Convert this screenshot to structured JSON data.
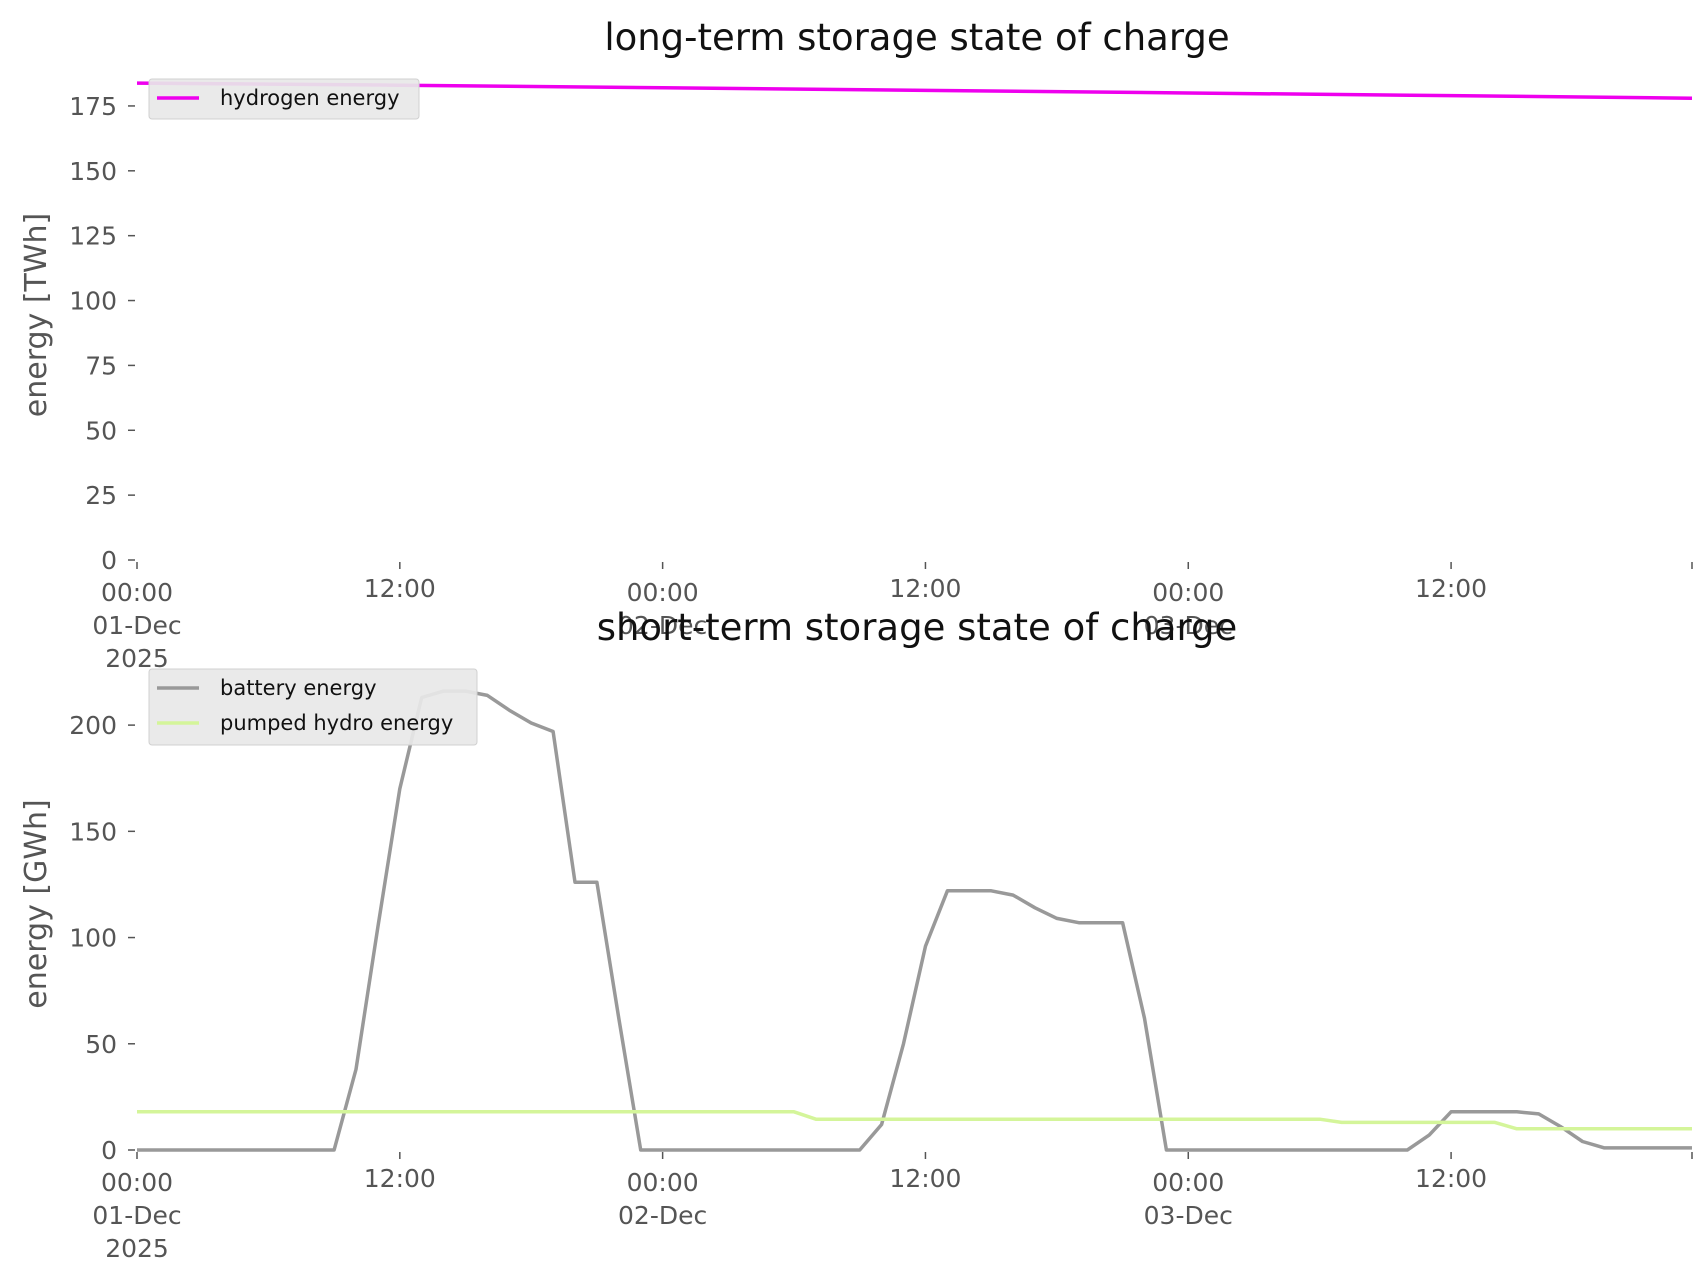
{
  "colors": {
    "hydrogen": "#ee00ee",
    "battery": "#999999",
    "pumped_hydro": "#d4f59a",
    "axis": "#555555",
    "legend_bg": "#e8e8e8",
    "legend_border": "#d0d0d0"
  },
  "chart_data": [
    {
      "type": "line",
      "title": "long-term storage state of charge",
      "ylabel": "energy [TWh]",
      "ylim": [
        0,
        185
      ],
      "yticks": [
        0,
        25,
        50,
        75,
        100,
        125,
        150,
        175
      ],
      "xlim": [
        "2025-12-01 00:00",
        "2025-12-03 23:00"
      ],
      "xticks": [
        {
          "x": "2025-12-01 00:00",
          "label": "00:00",
          "label2": "01-Dec",
          "label3": "2025"
        },
        {
          "x": "2025-12-01 12:00",
          "label": "12:00"
        },
        {
          "x": "2025-12-02 00:00",
          "label": "00:00",
          "label2": "02-Dec"
        },
        {
          "x": "2025-12-02 12:00",
          "label": "12:00"
        },
        {
          "x": "2025-12-03 00:00",
          "label": "00:00",
          "label2": "03-Dec"
        },
        {
          "x": "2025-12-03 12:00",
          "label": "12:00"
        },
        {
          "x": "2025-12-03 23:00",
          "label": ""
        }
      ],
      "legend": "upper left",
      "grid": false,
      "series": [
        {
          "name": "hydrogen energy",
          "color": "#ee00ee",
          "points": [
            {
              "x": "2025-12-01 00:00",
              "y": 183.8
            },
            {
              "x": "2025-12-01 12:00",
              "y": 183.0
            },
            {
              "x": "2025-12-02 00:00",
              "y": 182.0
            },
            {
              "x": "2025-12-02 12:00",
              "y": 181.0
            },
            {
              "x": "2025-12-03 00:00",
              "y": 180.0
            },
            {
              "x": "2025-12-03 12:00",
              "y": 179.0
            },
            {
              "x": "2025-12-03 23:00",
              "y": 178.0
            }
          ]
        }
      ]
    },
    {
      "type": "line",
      "title": "short-term storage state of charge",
      "ylabel": "energy [GWh]",
      "ylim": [
        0,
        225
      ],
      "yticks": [
        0,
        50,
        100,
        150,
        200
      ],
      "xlim": [
        "2025-12-01 00:00",
        "2025-12-03 23:00"
      ],
      "xticks": [
        {
          "x": "2025-12-01 00:00",
          "label": "00:00",
          "label2": "01-Dec",
          "label3": "2025"
        },
        {
          "x": "2025-12-01 12:00",
          "label": "12:00"
        },
        {
          "x": "2025-12-02 00:00",
          "label": "00:00",
          "label2": "02-Dec"
        },
        {
          "x": "2025-12-02 12:00",
          "label": "12:00"
        },
        {
          "x": "2025-12-03 00:00",
          "label": "00:00",
          "label2": "03-Dec"
        },
        {
          "x": "2025-12-03 12:00",
          "label": "12:00"
        },
        {
          "x": "2025-12-03 23:00",
          "label": ""
        }
      ],
      "legend": "upper left",
      "grid": false,
      "series": [
        {
          "name": "battery energy",
          "color": "#999999",
          "points": [
            {
              "x": "2025-12-01 00:00",
              "y": 0
            },
            {
              "x": "2025-12-01 09:00",
              "y": 0
            },
            {
              "x": "2025-12-01 10:00",
              "y": 38
            },
            {
              "x": "2025-12-01 11:00",
              "y": 105
            },
            {
              "x": "2025-12-01 12:00",
              "y": 170
            },
            {
              "x": "2025-12-01 13:00",
              "y": 213
            },
            {
              "x": "2025-12-01 14:00",
              "y": 216
            },
            {
              "x": "2025-12-01 15:00",
              "y": 216
            },
            {
              "x": "2025-12-01 16:00",
              "y": 214
            },
            {
              "x": "2025-12-01 17:00",
              "y": 207
            },
            {
              "x": "2025-12-01 18:00",
              "y": 201
            },
            {
              "x": "2025-12-01 19:00",
              "y": 197
            },
            {
              "x": "2025-12-01 20:00",
              "y": 126
            },
            {
              "x": "2025-12-01 21:00",
              "y": 126
            },
            {
              "x": "2025-12-01 22:00",
              "y": 62
            },
            {
              "x": "2025-12-01 23:00",
              "y": 0
            },
            {
              "x": "2025-12-02 09:00",
              "y": 0
            },
            {
              "x": "2025-12-02 10:00",
              "y": 12
            },
            {
              "x": "2025-12-02 11:00",
              "y": 50
            },
            {
              "x": "2025-12-02 12:00",
              "y": 96
            },
            {
              "x": "2025-12-02 13:00",
              "y": 122
            },
            {
              "x": "2025-12-02 14:00",
              "y": 122
            },
            {
              "x": "2025-12-02 15:00",
              "y": 122
            },
            {
              "x": "2025-12-02 16:00",
              "y": 120
            },
            {
              "x": "2025-12-02 17:00",
              "y": 114
            },
            {
              "x": "2025-12-02 18:00",
              "y": 109
            },
            {
              "x": "2025-12-02 19:00",
              "y": 107
            },
            {
              "x": "2025-12-02 20:00",
              "y": 107
            },
            {
              "x": "2025-12-02 21:00",
              "y": 107
            },
            {
              "x": "2025-12-02 22:00",
              "y": 62
            },
            {
              "x": "2025-12-02 23:00",
              "y": 0
            },
            {
              "x": "2025-12-03 10:00",
              "y": 0
            },
            {
              "x": "2025-12-03 11:00",
              "y": 7
            },
            {
              "x": "2025-12-03 12:00",
              "y": 18
            },
            {
              "x": "2025-12-03 13:00",
              "y": 18
            },
            {
              "x": "2025-12-03 14:00",
              "y": 18
            },
            {
              "x": "2025-12-03 15:00",
              "y": 18
            },
            {
              "x": "2025-12-03 16:00",
              "y": 17
            },
            {
              "x": "2025-12-03 17:00",
              "y": 11
            },
            {
              "x": "2025-12-03 18:00",
              "y": 4
            },
            {
              "x": "2025-12-03 19:00",
              "y": 1
            },
            {
              "x": "2025-12-03 23:00",
              "y": 1
            }
          ]
        },
        {
          "name": "pumped hydro energy",
          "color": "#d4f59a",
          "points": [
            {
              "x": "2025-12-01 00:00",
              "y": 18
            },
            {
              "x": "2025-12-02 06:00",
              "y": 18
            },
            {
              "x": "2025-12-02 07:00",
              "y": 14.5
            },
            {
              "x": "2025-12-03 06:00",
              "y": 14.5
            },
            {
              "x": "2025-12-03 07:00",
              "y": 13
            },
            {
              "x": "2025-12-03 14:00",
              "y": 13
            },
            {
              "x": "2025-12-03 15:00",
              "y": 10
            },
            {
              "x": "2025-12-03 23:00",
              "y": 10
            }
          ]
        }
      ]
    }
  ]
}
